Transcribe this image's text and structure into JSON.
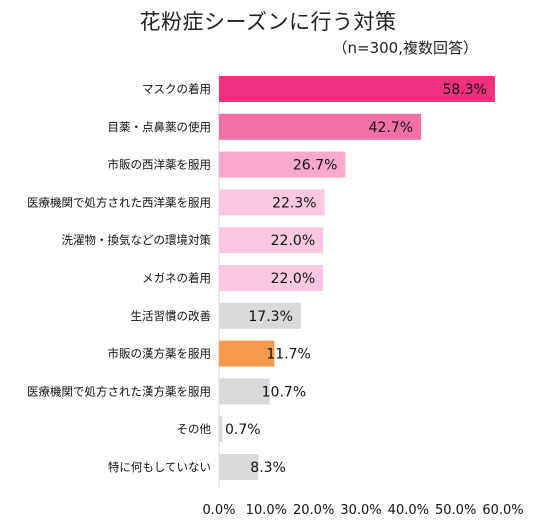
{
  "chart_data": {
    "type": "bar",
    "orientation": "horizontal",
    "title": "花粉症シーズンに行う対策",
    "subtitle": "（n=300,複数回答）",
    "categories": [
      "マスクの着用",
      "目薬・点鼻薬の使用",
      "市販の西洋薬を服用",
      "医療機関で処方された西洋薬を服用",
      "洗濯物・換気などの環境対策",
      "メガネの着用",
      "生活習慣の改善",
      "市販の漢方薬を服用",
      "医療機関で処方された漢方薬を服用",
      "その他",
      "特に何もしていない"
    ],
    "values": [
      58.3,
      42.7,
      26.7,
      22.3,
      22.0,
      22.0,
      17.3,
      11.7,
      10.7,
      0.7,
      8.3
    ],
    "value_labels": [
      "58.3%",
      "42.7%",
      "26.7%",
      "22.3%",
      "22.0%",
      "22.0%",
      "17.3%",
      "11.7%",
      "10.7%",
      "0.7%",
      "8.3%"
    ],
    "bar_colors": [
      "#f0317f",
      "#f36fa8",
      "#f9a9cd",
      "#fbc8e1",
      "#fbc8e1",
      "#fbc8e1",
      "#d9d9d9",
      "#f49a4a",
      "#d9d9d9",
      "#d9d9d9",
      "#d9d9d9"
    ],
    "xlim": [
      0,
      60
    ],
    "x_ticks": [
      "0.0%",
      "10.0%",
      "20.0%",
      "30.0%",
      "40.0%",
      "50.0%",
      "60.0%"
    ],
    "grid": false,
    "legend": "none"
  }
}
